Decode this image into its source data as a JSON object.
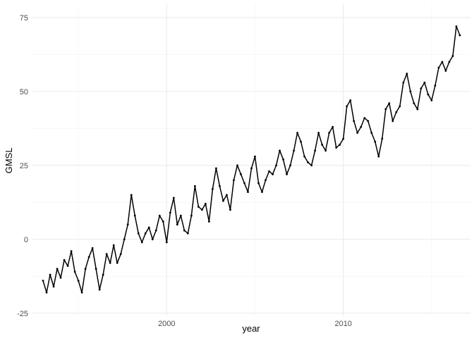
{
  "chart_data": {
    "type": "line",
    "xlabel": "year",
    "ylabel": "GMSL",
    "xlim": [
      1992.4,
      2017.2
    ],
    "ylim": [
      -26.0,
      79.5
    ],
    "x_ticks": [
      2000,
      2010
    ],
    "x_tick_labels": [
      "2000",
      "2010"
    ],
    "y_ticks": [
      -25,
      0,
      25,
      50,
      75
    ],
    "y_tick_labels": [
      "-25",
      "0",
      "25",
      "50",
      "75"
    ],
    "grid": true,
    "legend": "none",
    "line_color": "#000000",
    "markers": true,
    "series": [
      {
        "x": [
          1993.0,
          1993.2,
          1993.4,
          1993.6,
          1993.8,
          1994.0,
          1994.2,
          1994.4,
          1994.6,
          1994.8,
          1995.0,
          1995.2,
          1995.4,
          1995.6,
          1995.8,
          1996.0,
          1996.2,
          1996.4,
          1996.6,
          1996.8,
          1997.0,
          1997.2,
          1997.4,
          1997.6,
          1997.8,
          1998.0,
          1998.2,
          1998.4,
          1998.6,
          1998.8,
          1999.0,
          1999.2,
          1999.4,
          1999.6,
          1999.8,
          2000.0,
          2000.2,
          2000.4,
          2000.6,
          2000.8,
          2001.0,
          2001.2,
          2001.4,
          2001.6,
          2001.8,
          2002.0,
          2002.2,
          2002.4,
          2002.6,
          2002.8,
          2003.0,
          2003.2,
          2003.4,
          2003.6,
          2003.8,
          2004.0,
          2004.2,
          2004.4,
          2004.6,
          2004.8,
          2005.0,
          2005.2,
          2005.4,
          2005.6,
          2005.8,
          2006.0,
          2006.2,
          2006.4,
          2006.6,
          2006.8,
          2007.0,
          2007.2,
          2007.4,
          2007.6,
          2007.8,
          2008.0,
          2008.2,
          2008.4,
          2008.6,
          2008.8,
          2009.0,
          2009.2,
          2009.4,
          2009.6,
          2009.8,
          2010.0,
          2010.2,
          2010.4,
          2010.6,
          2010.8,
          2011.0,
          2011.2,
          2011.4,
          2011.6,
          2011.8,
          2012.0,
          2012.2,
          2012.4,
          2012.6,
          2012.8,
          2013.0,
          2013.2,
          2013.4,
          2013.6,
          2013.8,
          2014.0,
          2014.2,
          2014.4,
          2014.6,
          2014.8,
          2015.0,
          2015.2,
          2015.4,
          2015.6,
          2015.8,
          2016.0,
          2016.2,
          2016.4,
          2016.6
        ],
        "y": [
          -14,
          -18,
          -12,
          -16,
          -10,
          -13,
          -7,
          -9,
          -4,
          -11,
          -14,
          -18,
          -10,
          -6,
          -3,
          -10,
          -17,
          -12,
          -5,
          -8,
          -2,
          -8,
          -5,
          0,
          5,
          15,
          8,
          2,
          -1,
          2,
          4,
          0,
          3,
          8,
          6,
          -1,
          9,
          14,
          5,
          8,
          3,
          2,
          8,
          18,
          11,
          10,
          12,
          6,
          17,
          24,
          18,
          13,
          15,
          10,
          20,
          25,
          22,
          19,
          16,
          24,
          28,
          19,
          16,
          20,
          23,
          22,
          25,
          30,
          27,
          22,
          25,
          30,
          36,
          33,
          28,
          26,
          25,
          30,
          36,
          32,
          30,
          36,
          38,
          31,
          32,
          34,
          45,
          47,
          40,
          36,
          38,
          41,
          40,
          36,
          33,
          28,
          34,
          44,
          46,
          40,
          43,
          45,
          53,
          56,
          50,
          46,
          44,
          51,
          53,
          49,
          47,
          52,
          58,
          60,
          57,
          60,
          62,
          72,
          69
        ]
      }
    ]
  }
}
